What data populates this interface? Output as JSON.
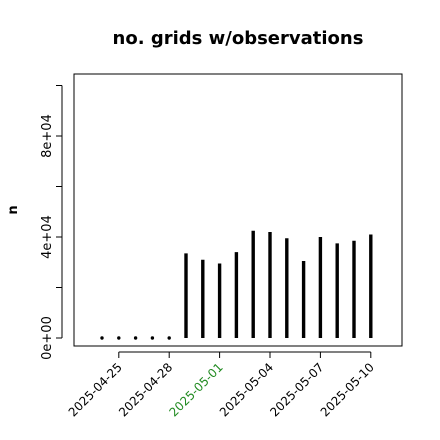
{
  "chart_data": {
    "type": "bar",
    "title": "no. grids w/observations",
    "xlabel": "",
    "ylabel": "n",
    "x": [
      "2025-04-24",
      "2025-04-25",
      "2025-04-26",
      "2025-04-27",
      "2025-04-28",
      "2025-04-29",
      "2025-04-30",
      "2025-05-01",
      "2025-05-02",
      "2025-05-03",
      "2025-05-04",
      "2025-05-05",
      "2025-05-06",
      "2025-05-07",
      "2025-05-08",
      "2025-05-09",
      "2025-05-10"
    ],
    "values": [
      0,
      0,
      0,
      0,
      0,
      33500,
      31000,
      29500,
      34000,
      42500,
      42000,
      39500,
      30500,
      40000,
      37500,
      38500,
      41000
    ],
    "ylim": [
      0,
      100000
    ],
    "xticks": [
      "2025-04-25",
      "2025-04-28",
      "2025-05-01",
      "2025-05-04",
      "2025-05-07",
      "2025-05-10"
    ],
    "highlight_tick": "2025-05-01",
    "highlight_color": "#228B22",
    "yticks": [
      {
        "value": 0,
        "label": "0e+00"
      },
      {
        "value": 40000,
        "label": "4e+04"
      },
      {
        "value": 80000,
        "label": "8e+04"
      }
    ],
    "ytick_minor": [
      20000,
      60000,
      100000
    ],
    "grid": false,
    "legend": "none"
  }
}
